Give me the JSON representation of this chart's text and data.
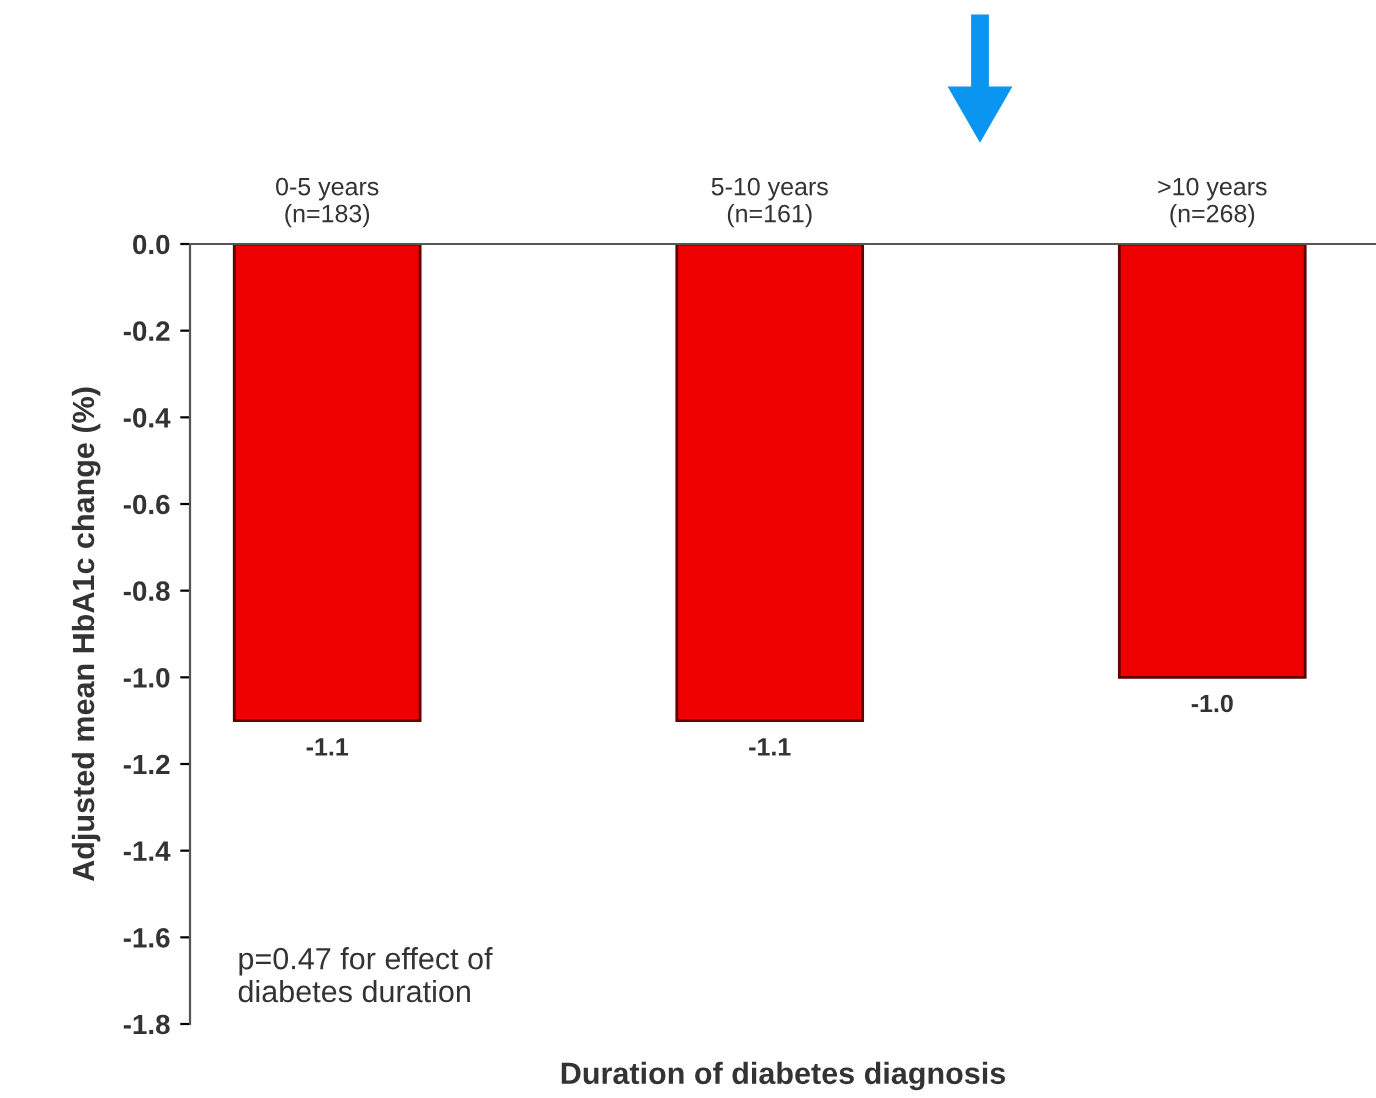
{
  "chart_data": {
    "type": "bar",
    "xlabel": "Duration of diabetes diagnosis",
    "ylabel": "Adjusted mean HbA1c change (%)",
    "categories": [
      "0-5 years\n(n=183)",
      "5-10 years\n(n=161)",
      ">10 years\n(n=268)"
    ],
    "values": [
      -1.1,
      -1.1,
      -1.0
    ],
    "color": "#ee0000",
    "value_labels": [
      "-1.1",
      "-1.1",
      "-1.0"
    ],
    "ylim": [
      -1.8,
      0
    ],
    "yticks": [
      {
        "value": 0,
        "label": "0.0"
      },
      -0.2,
      -0.4,
      -0.6,
      -0.8,
      {
        "value": -1,
        "label": "-1.0"
      },
      -1.2,
      -1.4,
      -1.6,
      -1.8
    ],
    "grid": false,
    "annotations": [
      "p=0.47 for effect of\ndiabetes duration"
    ]
  }
}
